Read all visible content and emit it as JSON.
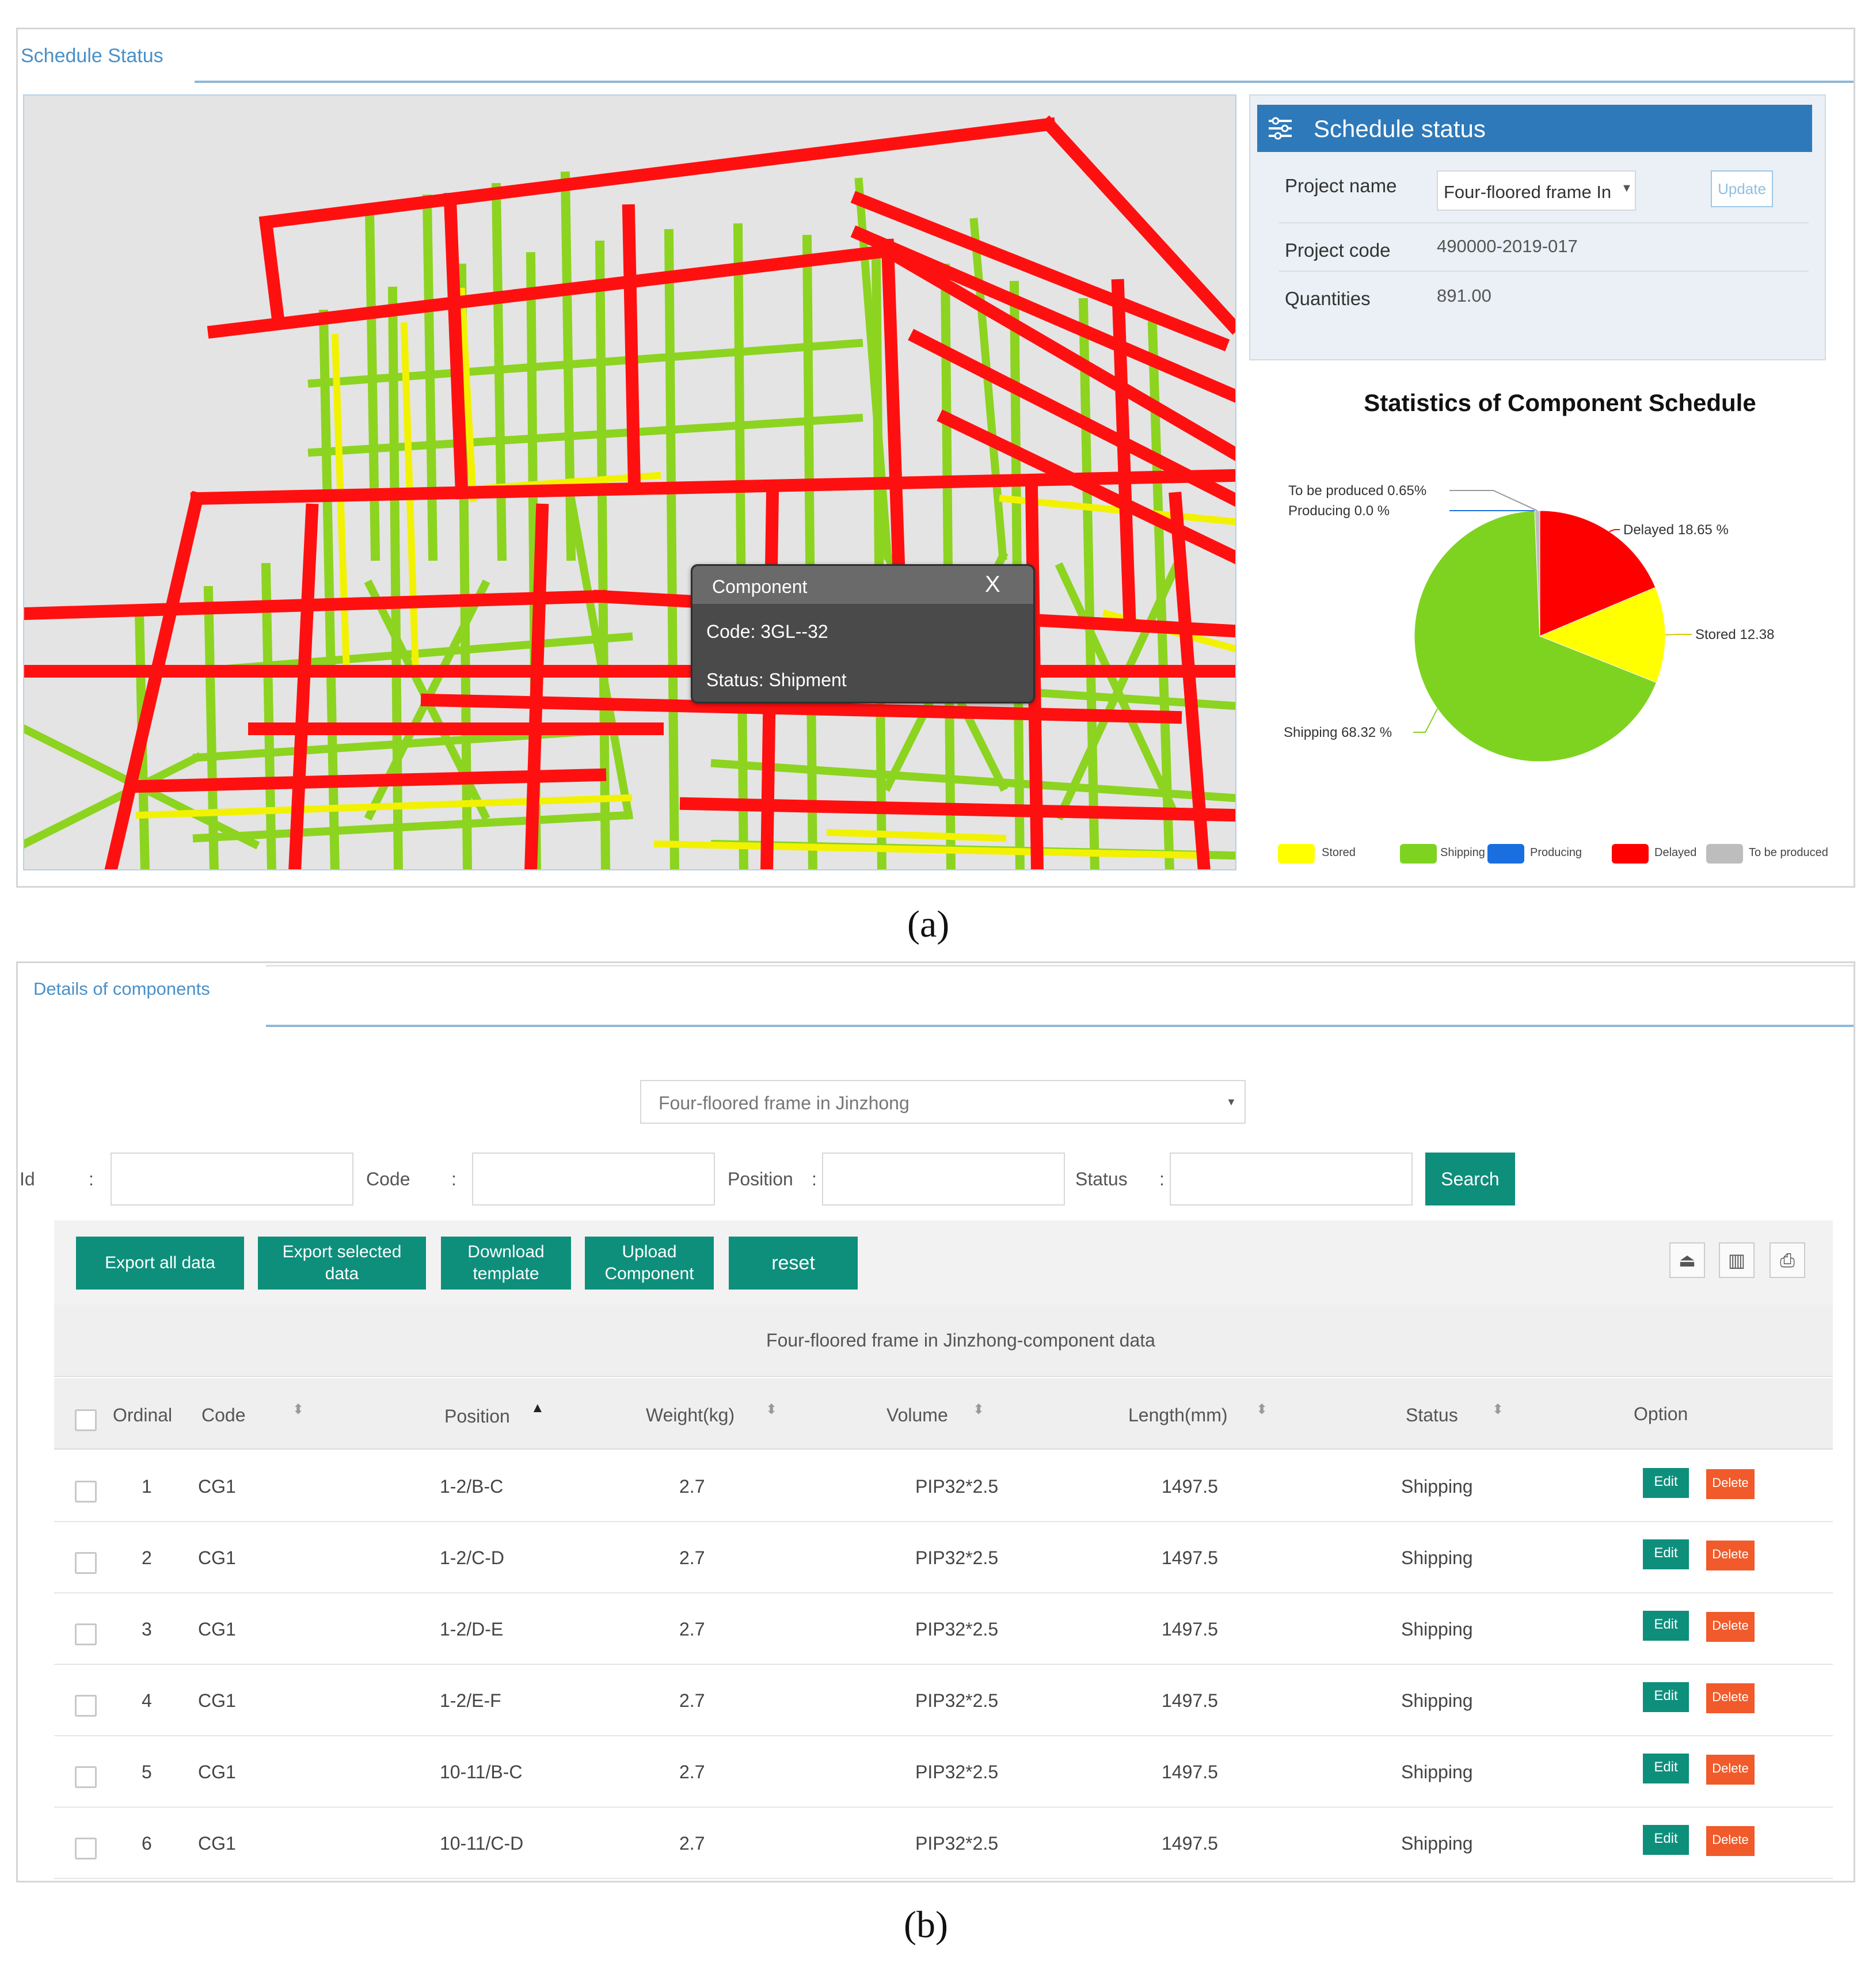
{
  "panel_a": {
    "tab": "Schedule Status",
    "tooltip": {
      "title": "Component",
      "close": "X",
      "code": "Code: 3GL--32",
      "status": "Status: Shipment"
    },
    "schedule": {
      "title": "Schedule status",
      "project_name_label": "Project name",
      "project_name_value": "Four-floored frame In",
      "update_button": "Update",
      "project_code_label": "Project code",
      "project_code_value": "490000-2019-017",
      "quantities_label": "Quantities",
      "quantities_value": "891.00"
    },
    "caption": "(a)"
  },
  "chart_data": {
    "type": "pie",
    "title": "Statistics of Component Schedule",
    "slices": [
      {
        "name": "Delayed",
        "value": 18.65,
        "label": "Delayed 18.65 %",
        "color": "#ff0000"
      },
      {
        "name": "Stored",
        "value": 12.38,
        "label": "Stored 12.38",
        "color": "#ffff00"
      },
      {
        "name": "Shipping",
        "value": 68.32,
        "label": "Shipping 68.32 %",
        "color": "#7ed321"
      },
      {
        "name": "Producing",
        "value": 0.0,
        "label": "Producing 0.0 %",
        "color": "#1a6fe0"
      },
      {
        "name": "To be produced",
        "value": 0.65,
        "label": "To be produced 0.65%",
        "color": "#bdbdbd"
      }
    ],
    "legend": [
      {
        "name": "Stored",
        "color": "#ffff00"
      },
      {
        "name": "Shipping",
        "color": "#7ed321"
      },
      {
        "name": "Producing",
        "color": "#1a6fe0"
      },
      {
        "name": "Delayed",
        "color": "#ff0000"
      },
      {
        "name": "To be produced",
        "color": "#bdbdbd"
      }
    ],
    "legend_position": "bottom"
  },
  "panel_b": {
    "tab": "Details of components",
    "project_select": "Four-floored frame in Jinzhong",
    "filters": {
      "id": "Id",
      "code": "Code",
      "position": "Position",
      "status": "Status",
      "colon": ":",
      "search": "Search"
    },
    "toolbar": {
      "export_all": "Export all data",
      "export_selected": "Export selected data",
      "download_template": "Download template",
      "upload_component": "Upload Component",
      "reset": "reset"
    },
    "table_title": "Four-floored frame in Jinzhong-component data",
    "columns": [
      "Ordinal",
      "Code",
      "Position",
      "Weight(kg)",
      "Volume",
      "Length(mm)",
      "Status",
      "Option"
    ],
    "rows": [
      {
        "ordinal": "1",
        "code": "CG1",
        "position": "1-2/B-C",
        "weight": "2.7",
        "volume": "PIP32*2.5",
        "length": "1497.5",
        "status": "Shipping"
      },
      {
        "ordinal": "2",
        "code": "CG1",
        "position": "1-2/C-D",
        "weight": "2.7",
        "volume": "PIP32*2.5",
        "length": "1497.5",
        "status": "Shipping"
      },
      {
        "ordinal": "3",
        "code": "CG1",
        "position": "1-2/D-E",
        "weight": "2.7",
        "volume": "PIP32*2.5",
        "length": "1497.5",
        "status": "Shipping"
      },
      {
        "ordinal": "4",
        "code": "CG1",
        "position": "1-2/E-F",
        "weight": "2.7",
        "volume": "PIP32*2.5",
        "length": "1497.5",
        "status": "Shipping"
      },
      {
        "ordinal": "5",
        "code": "CG1",
        "position": "10-11/B-C",
        "weight": "2.7",
        "volume": "PIP32*2.5",
        "length": "1497.5",
        "status": "Shipping"
      },
      {
        "ordinal": "6",
        "code": "CG1",
        "position": "10-11/C-D",
        "weight": "2.7",
        "volume": "PIP32*2.5",
        "length": "1497.5",
        "status": "Shipping"
      }
    ],
    "edit_label": "Edit",
    "delete_label": "Delete",
    "caption": "(b)"
  }
}
